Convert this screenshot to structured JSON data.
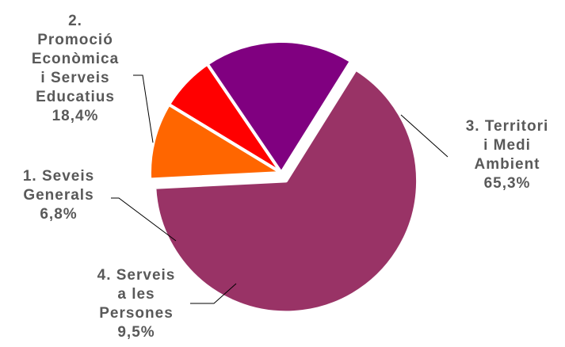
{
  "chart_data": {
    "type": "pie",
    "slices": [
      {
        "name": "3. Territori i Medi Ambient",
        "lines": [
          "3. Territori",
          "i Medi",
          "Ambient"
        ],
        "value": 65.3,
        "value_label": "65,3%",
        "color": "#993366",
        "exploded": true
      },
      {
        "name": "4. Serveis a les Persones",
        "lines": [
          "4. Serveis",
          "a les",
          "Persones"
        ],
        "value": 9.5,
        "value_label": "9,5%",
        "color": "#FF6600",
        "exploded": false
      },
      {
        "name": "1. Seveis Generals",
        "lines": [
          "1.  Seveis",
          "Generals"
        ],
        "value": 6.8,
        "value_label": "6,8%",
        "color": "#FF0000",
        "exploded": false
      },
      {
        "name": "2. Promoció Econòmica i Serveis Educatius",
        "lines": [
          "2.",
          "Promoció",
          "Econòmica",
          "i Serveis",
          "Educatius"
        ],
        "value": 18.4,
        "value_label": "18,4%",
        "color": "#800080",
        "exploded": false
      }
    ],
    "legend": "none"
  }
}
